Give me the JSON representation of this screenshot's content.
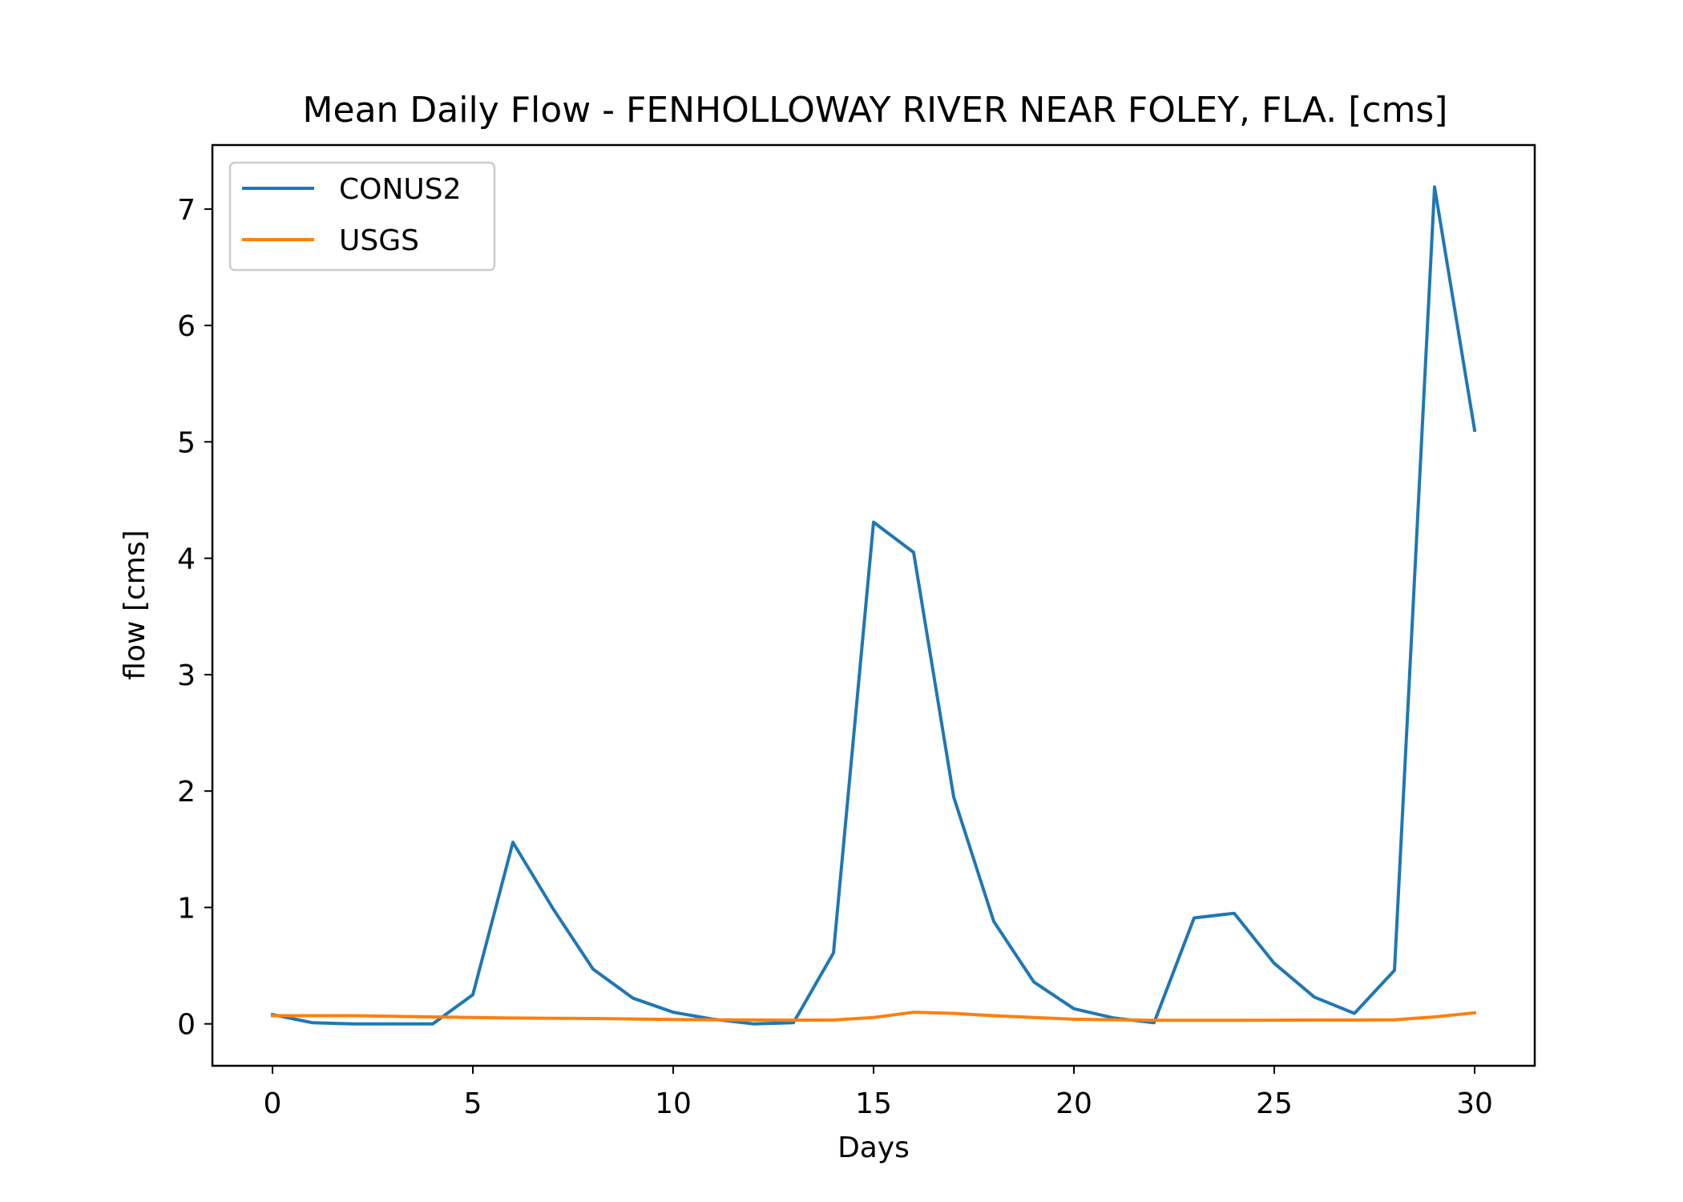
{
  "chart_data": {
    "type": "line",
    "title": "Mean Daily Flow - FENHOLLOWAY RIVER NEAR FOLEY, FLA. [cms]",
    "xlabel": "Days",
    "ylabel": "flow [cms]",
    "xlim": [
      -1.5,
      31.5
    ],
    "ylim": [
      -0.36,
      7.55
    ],
    "xticks": [
      0,
      5,
      10,
      15,
      20,
      25,
      30
    ],
    "yticks": [
      0,
      1,
      2,
      3,
      4,
      5,
      6,
      7
    ],
    "grid": false,
    "legend_position": "top-left",
    "x": [
      0,
      1,
      2,
      3,
      4,
      5,
      6,
      7,
      8,
      9,
      10,
      11,
      12,
      13,
      14,
      15,
      16,
      17,
      18,
      19,
      20,
      21,
      22,
      23,
      24,
      25,
      26,
      27,
      28,
      29,
      30
    ],
    "series": [
      {
        "name": "CONUS2",
        "color": "#1f77b4",
        "values": [
          0.08,
          0.01,
          0.0,
          0.0,
          0.0,
          0.25,
          1.56,
          0.99,
          0.47,
          0.22,
          0.1,
          0.04,
          0.0,
          0.01,
          0.61,
          4.31,
          4.05,
          1.95,
          0.88,
          0.36,
          0.13,
          0.05,
          0.01,
          0.91,
          0.95,
          0.52,
          0.23,
          0.09,
          0.46,
          7.19,
          5.1
        ]
      },
      {
        "name": "USGS",
        "color": "#ff7f0e",
        "values": [
          0.07,
          0.07,
          0.07,
          0.065,
          0.06,
          0.055,
          0.05,
          0.048,
          0.046,
          0.042,
          0.038,
          0.035,
          0.033,
          0.032,
          0.033,
          0.055,
          0.1,
          0.09,
          0.07,
          0.055,
          0.04,
          0.035,
          0.03,
          0.03,
          0.03,
          0.032,
          0.033,
          0.033,
          0.035,
          0.06,
          0.095
        ]
      }
    ]
  }
}
